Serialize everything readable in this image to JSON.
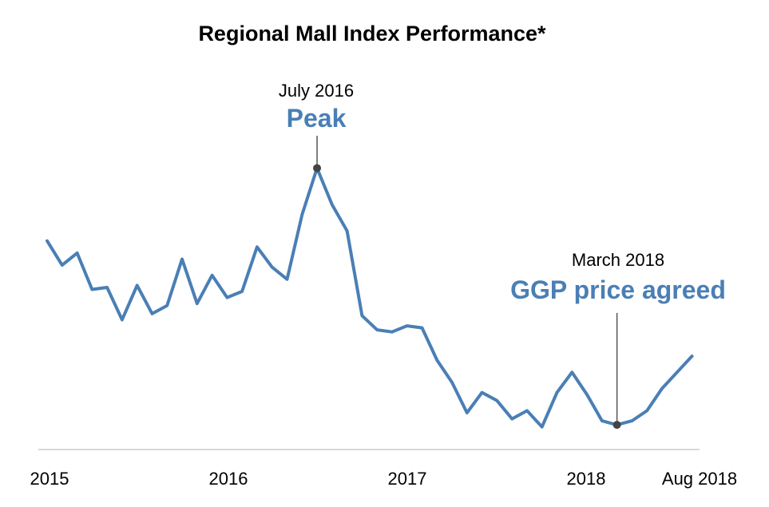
{
  "chart_data": {
    "type": "line",
    "title": "Regional Mall Index Performance*",
    "xlabel": "",
    "ylabel": "",
    "grid": false,
    "x_ticks": [
      "2015",
      "2016",
      "2017",
      "2018",
      "Aug 2018"
    ],
    "x": [
      "2015-01",
      "2015-02",
      "2015-03",
      "2015-04",
      "2015-05",
      "2015-06",
      "2015-07",
      "2015-08",
      "2015-09",
      "2015-10",
      "2015-11",
      "2015-12",
      "2016-01",
      "2016-02",
      "2016-03",
      "2016-04",
      "2016-05",
      "2016-06",
      "2016-07",
      "2016-08",
      "2016-09",
      "2016-10",
      "2016-11",
      "2016-12",
      "2017-01",
      "2017-02",
      "2017-03",
      "2017-04",
      "2017-05",
      "2017-06",
      "2017-07",
      "2017-08",
      "2017-09",
      "2017-10",
      "2017-11",
      "2017-12",
      "2018-01",
      "2018-02",
      "2018-03",
      "2018-04",
      "2018-05",
      "2018-06",
      "2018-07",
      "2018-08"
    ],
    "series": [
      {
        "values": [
          73,
          67,
          70,
          61,
          61.5,
          53.5,
          62,
          55,
          57,
          68.5,
          57.5,
          64.5,
          59,
          60.5,
          71.5,
          66.5,
          63.5,
          79.5,
          91,
          82,
          75.5,
          54.5,
          51,
          50.5,
          52,
          51.5,
          43.5,
          38,
          30.5,
          35.5,
          33.5,
          29,
          31,
          27,
          35.5,
          40.5,
          35,
          28.5,
          27.5,
          28.5,
          31,
          36.5,
          40.5,
          44.5
        ],
        "color": "#4a7fb5"
      }
    ],
    "ylim": [
      22,
      100
    ],
    "annotations": [
      {
        "x": "2016-07",
        "date": "July 2016",
        "label": "Peak"
      },
      {
        "x": "2018-03",
        "date": "March 2018",
        "label": "GGP price agreed"
      }
    ],
    "annotation_color": "#4a7fb5",
    "marker_color": "#444444",
    "axis_color": "#cccccc"
  }
}
